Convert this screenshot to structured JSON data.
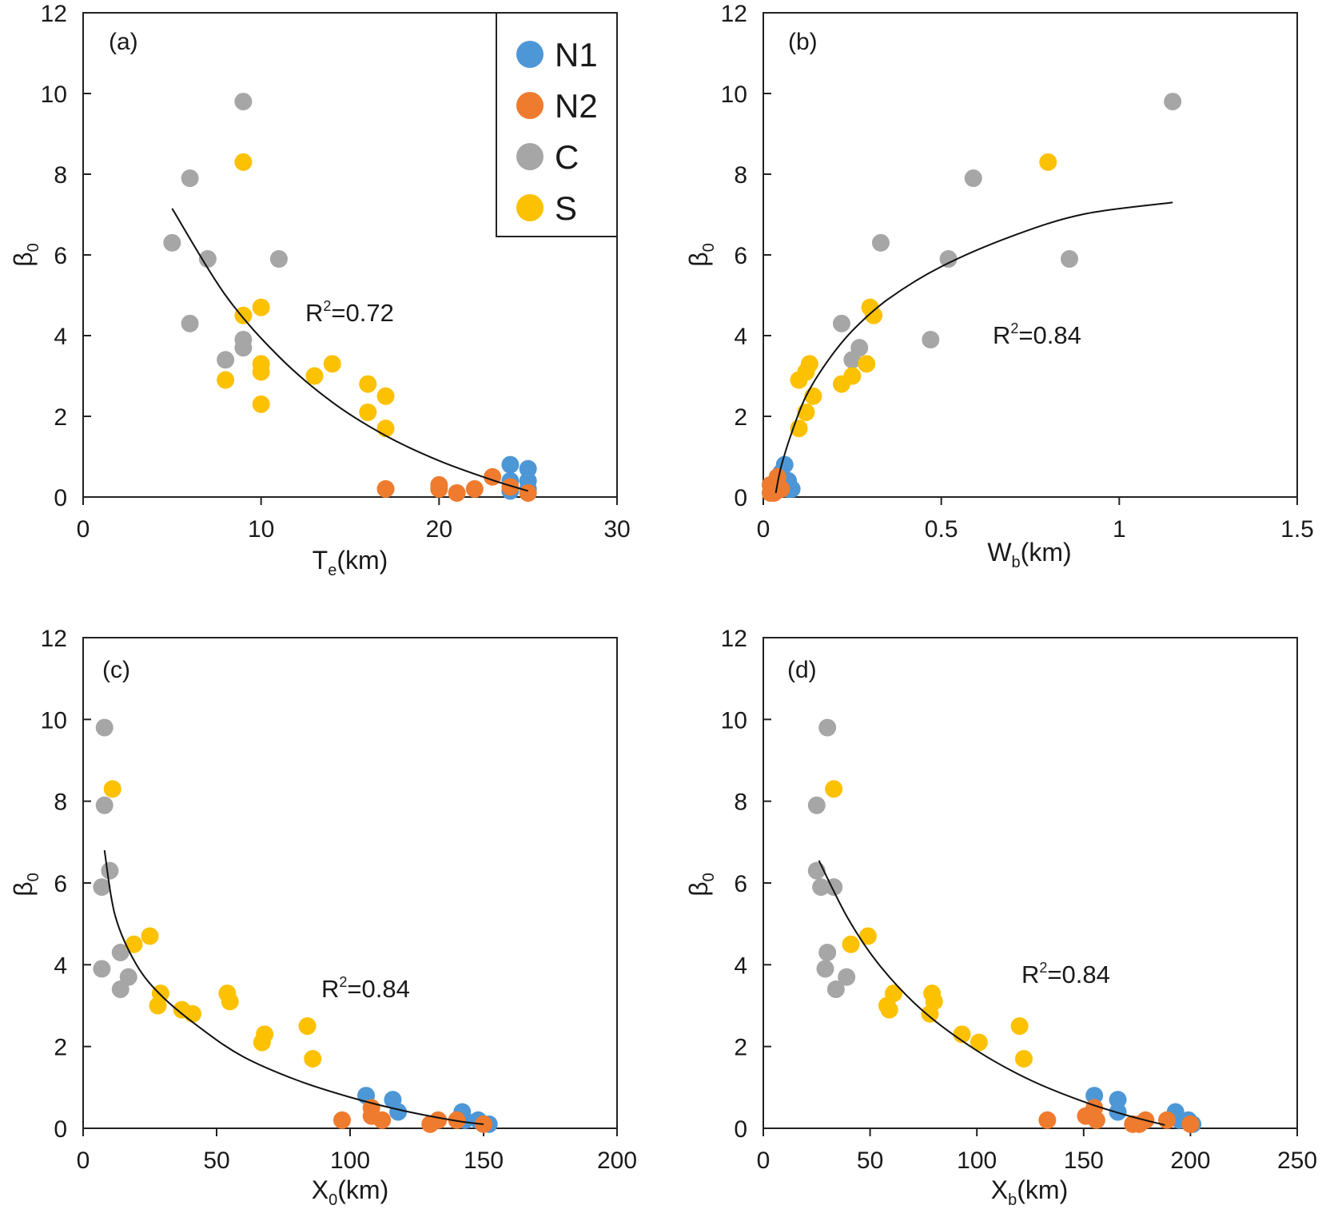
{
  "colors": {
    "N1": "#4d97d6",
    "N2": "#ef7b2f",
    "C": "#a6a6a6",
    "S": "#fcc100"
  },
  "legend": {
    "entries": [
      {
        "key": "N1",
        "label": "N1"
      },
      {
        "key": "N2",
        "label": "N2"
      },
      {
        "key": "C",
        "label": "C"
      },
      {
        "key": "S",
        "label": "S"
      }
    ]
  },
  "chart_data": [
    {
      "id": "a",
      "type": "scatter",
      "panel_label": "(a)",
      "xlabel_main": "T",
      "xlabel_sub": "e",
      "xlabel_tail": "(km)",
      "ylabel_main": "β",
      "ylabel_sub": "0",
      "xlim": [
        0,
        30
      ],
      "xticks": [
        0,
        10,
        20,
        30
      ],
      "ylim": [
        0,
        12
      ],
      "yticks": [
        0,
        2,
        4,
        6,
        8,
        10,
        12
      ],
      "r2_pre": "R",
      "r2_sup": "2",
      "r2_post": "=0.72",
      "fit": {
        "x": [
          5,
          8,
          11,
          14,
          17,
          20,
          23,
          25
        ],
        "y": [
          7.15,
          5.0,
          3.48,
          2.35,
          1.52,
          0.9,
          0.42,
          0.15
        ]
      },
      "series": [
        {
          "name": "C",
          "x": [
            5,
            6,
            6,
            7,
            8,
            9,
            9,
            9,
            11
          ],
          "y": [
            6.3,
            7.9,
            4.3,
            5.9,
            3.4,
            9.8,
            3.9,
            3.7,
            5.9
          ]
        },
        {
          "name": "S",
          "x": [
            9,
            9,
            10,
            10,
            10,
            8,
            10,
            13,
            14,
            16,
            16,
            17,
            17
          ],
          "y": [
            8.3,
            4.5,
            4.7,
            3.3,
            3.1,
            2.9,
            2.3,
            3.0,
            3.3,
            2.8,
            2.1,
            2.5,
            1.7
          ]
        },
        {
          "name": "N1",
          "x": [
            24,
            24,
            24,
            25,
            25,
            25
          ],
          "y": [
            0.8,
            0.4,
            0.15,
            0.7,
            0.4,
            0.2
          ]
        },
        {
          "name": "N2",
          "x": [
            17,
            20,
            20,
            21,
            22,
            23,
            24,
            25
          ],
          "y": [
            0.2,
            0.3,
            0.2,
            0.1,
            0.2,
            0.5,
            0.25,
            0.1
          ]
        }
      ]
    },
    {
      "id": "b",
      "type": "scatter",
      "panel_label": "(b)",
      "xlabel_main": "W",
      "xlabel_sub": "b",
      "xlabel_tail": "(km)",
      "ylabel_main": "β",
      "ylabel_sub": "0",
      "xlim": [
        0,
        1.5
      ],
      "xticks": [
        0,
        0.5,
        1,
        1.5
      ],
      "ylim": [
        0,
        12
      ],
      "yticks": [
        0,
        2,
        4,
        6,
        8,
        10,
        12
      ],
      "r2_pre": "R",
      "r2_sup": "2",
      "r2_post": "=0.84",
      "fit": {
        "x": [
          0.035,
          0.05,
          0.08,
          0.12,
          0.18,
          0.25,
          0.35,
          0.5,
          0.7,
          0.9,
          1.15
        ],
        "y": [
          0.1,
          0.75,
          1.6,
          2.5,
          3.36,
          4.12,
          4.9,
          5.71,
          6.47,
          7.01,
          7.3
        ]
      },
      "series": [
        {
          "name": "C",
          "x": [
            1.15,
            0.59,
            0.33,
            0.52,
            0.86,
            0.22,
            0.47,
            0.27,
            0.25
          ],
          "y": [
            9.8,
            7.9,
            6.3,
            5.9,
            5.9,
            4.3,
            3.9,
            3.7,
            3.4
          ]
        },
        {
          "name": "S",
          "x": [
            0.8,
            0.3,
            0.31,
            0.13,
            0.12,
            0.1,
            0.29,
            0.25,
            0.22,
            0.14,
            0.12,
            0.1
          ],
          "y": [
            8.3,
            4.7,
            4.5,
            3.3,
            3.1,
            2.9,
            3.3,
            3.0,
            2.8,
            2.5,
            2.1,
            1.7
          ]
        },
        {
          "name": "N1",
          "x": [
            0.06,
            0.07,
            0.05,
            0.07,
            0.08
          ],
          "y": [
            0.8,
            0.4,
            0.6,
            0.2,
            0.2
          ]
        },
        {
          "name": "N2",
          "x": [
            0.02,
            0.03,
            0.04,
            0.03,
            0.05,
            0.02
          ],
          "y": [
            0.3,
            0.2,
            0.5,
            0.1,
            0.2,
            0.1
          ]
        }
      ]
    },
    {
      "id": "c",
      "type": "scatter",
      "panel_label": "(c)",
      "xlabel_main": "X",
      "xlabel_sub": "0",
      "xlabel_tail": "(km)",
      "ylabel_main": "β",
      "ylabel_sub": "0",
      "xlim": [
        0,
        200
      ],
      "xticks": [
        0,
        50,
        100,
        150,
        200
      ],
      "ylim": [
        0,
        12
      ],
      "yticks": [
        0,
        2,
        4,
        6,
        8,
        10,
        12
      ],
      "r2_pre": "R",
      "r2_sup": "2",
      "r2_post": "=0.84",
      "fit": {
        "x": [
          8,
          12,
          20,
          30,
          45,
          60,
          80,
          100,
          120,
          140,
          150
        ],
        "y": [
          6.8,
          5.2,
          4.0,
          3.2,
          2.4,
          1.75,
          1.18,
          0.76,
          0.43,
          0.18,
          0.1
        ]
      },
      "series": [
        {
          "name": "C",
          "x": [
            8,
            8,
            7,
            10,
            7,
            14,
            17,
            14
          ],
          "y": [
            9.8,
            7.9,
            5.9,
            6.3,
            3.9,
            4.3,
            3.7,
            3.4
          ]
        },
        {
          "name": "S",
          "x": [
            11,
            19,
            25,
            29,
            28,
            37,
            41,
            54,
            55,
            68,
            67,
            84,
            86
          ],
          "y": [
            8.3,
            4.5,
            4.7,
            3.3,
            3.0,
            2.9,
            2.8,
            3.3,
            3.1,
            2.3,
            2.1,
            2.5,
            1.7
          ]
        },
        {
          "name": "N1",
          "x": [
            106,
            116,
            118,
            142,
            143,
            148,
            150,
            152
          ],
          "y": [
            0.8,
            0.7,
            0.4,
            0.4,
            0.2,
            0.2,
            0.1,
            0.1
          ]
        },
        {
          "name": "N2",
          "x": [
            97,
            108,
            108,
            112,
            130,
            133,
            140,
            150
          ],
          "y": [
            0.2,
            0.5,
            0.3,
            0.2,
            0.1,
            0.2,
            0.2,
            0.1
          ]
        }
      ]
    },
    {
      "id": "d",
      "type": "scatter",
      "panel_label": "(d)",
      "xlabel_main": "X",
      "xlabel_sub": "b",
      "xlabel_tail": "(km)",
      "ylabel_main": "β",
      "ylabel_sub": "0",
      "xlim": [
        0,
        250
      ],
      "xticks": [
        0,
        50,
        100,
        150,
        200,
        250
      ],
      "ylim": [
        0,
        12
      ],
      "yticks": [
        0,
        2,
        4,
        6,
        8,
        10,
        12
      ],
      "r2_pre": "R",
      "r2_sup": "2",
      "r2_post": "=0.84",
      "fit": {
        "x": [
          26,
          40,
          55,
          75,
          100,
          125,
          150,
          170,
          188
        ],
        "y": [
          6.55,
          5.1,
          3.95,
          2.86,
          1.9,
          1.18,
          0.65,
          0.32,
          0.08
        ]
      },
      "series": [
        {
          "name": "C",
          "x": [
            30,
            25,
            25,
            27,
            33,
            30,
            29,
            39,
            34
          ],
          "y": [
            9.8,
            7.9,
            6.3,
            5.9,
            5.9,
            4.3,
            3.9,
            3.7,
            3.4
          ]
        },
        {
          "name": "S",
          "x": [
            33,
            41,
            49,
            58,
            59,
            61,
            79,
            80,
            78,
            93,
            101,
            120,
            122
          ],
          "y": [
            8.3,
            4.5,
            4.7,
            3.0,
            2.9,
            3.3,
            3.3,
            3.1,
            2.8,
            2.3,
            2.1,
            2.5,
            1.7
          ]
        },
        {
          "name": "N1",
          "x": [
            155,
            166,
            166,
            193,
            195,
            199,
            201
          ],
          "y": [
            0.8,
            0.7,
            0.4,
            0.4,
            0.2,
            0.2,
            0.1
          ]
        },
        {
          "name": "N2",
          "x": [
            133,
            151,
            155,
            156,
            173,
            176,
            179,
            189,
            200
          ],
          "y": [
            0.2,
            0.3,
            0.5,
            0.2,
            0.1,
            0.1,
            0.2,
            0.2,
            0.1
          ]
        }
      ]
    }
  ]
}
